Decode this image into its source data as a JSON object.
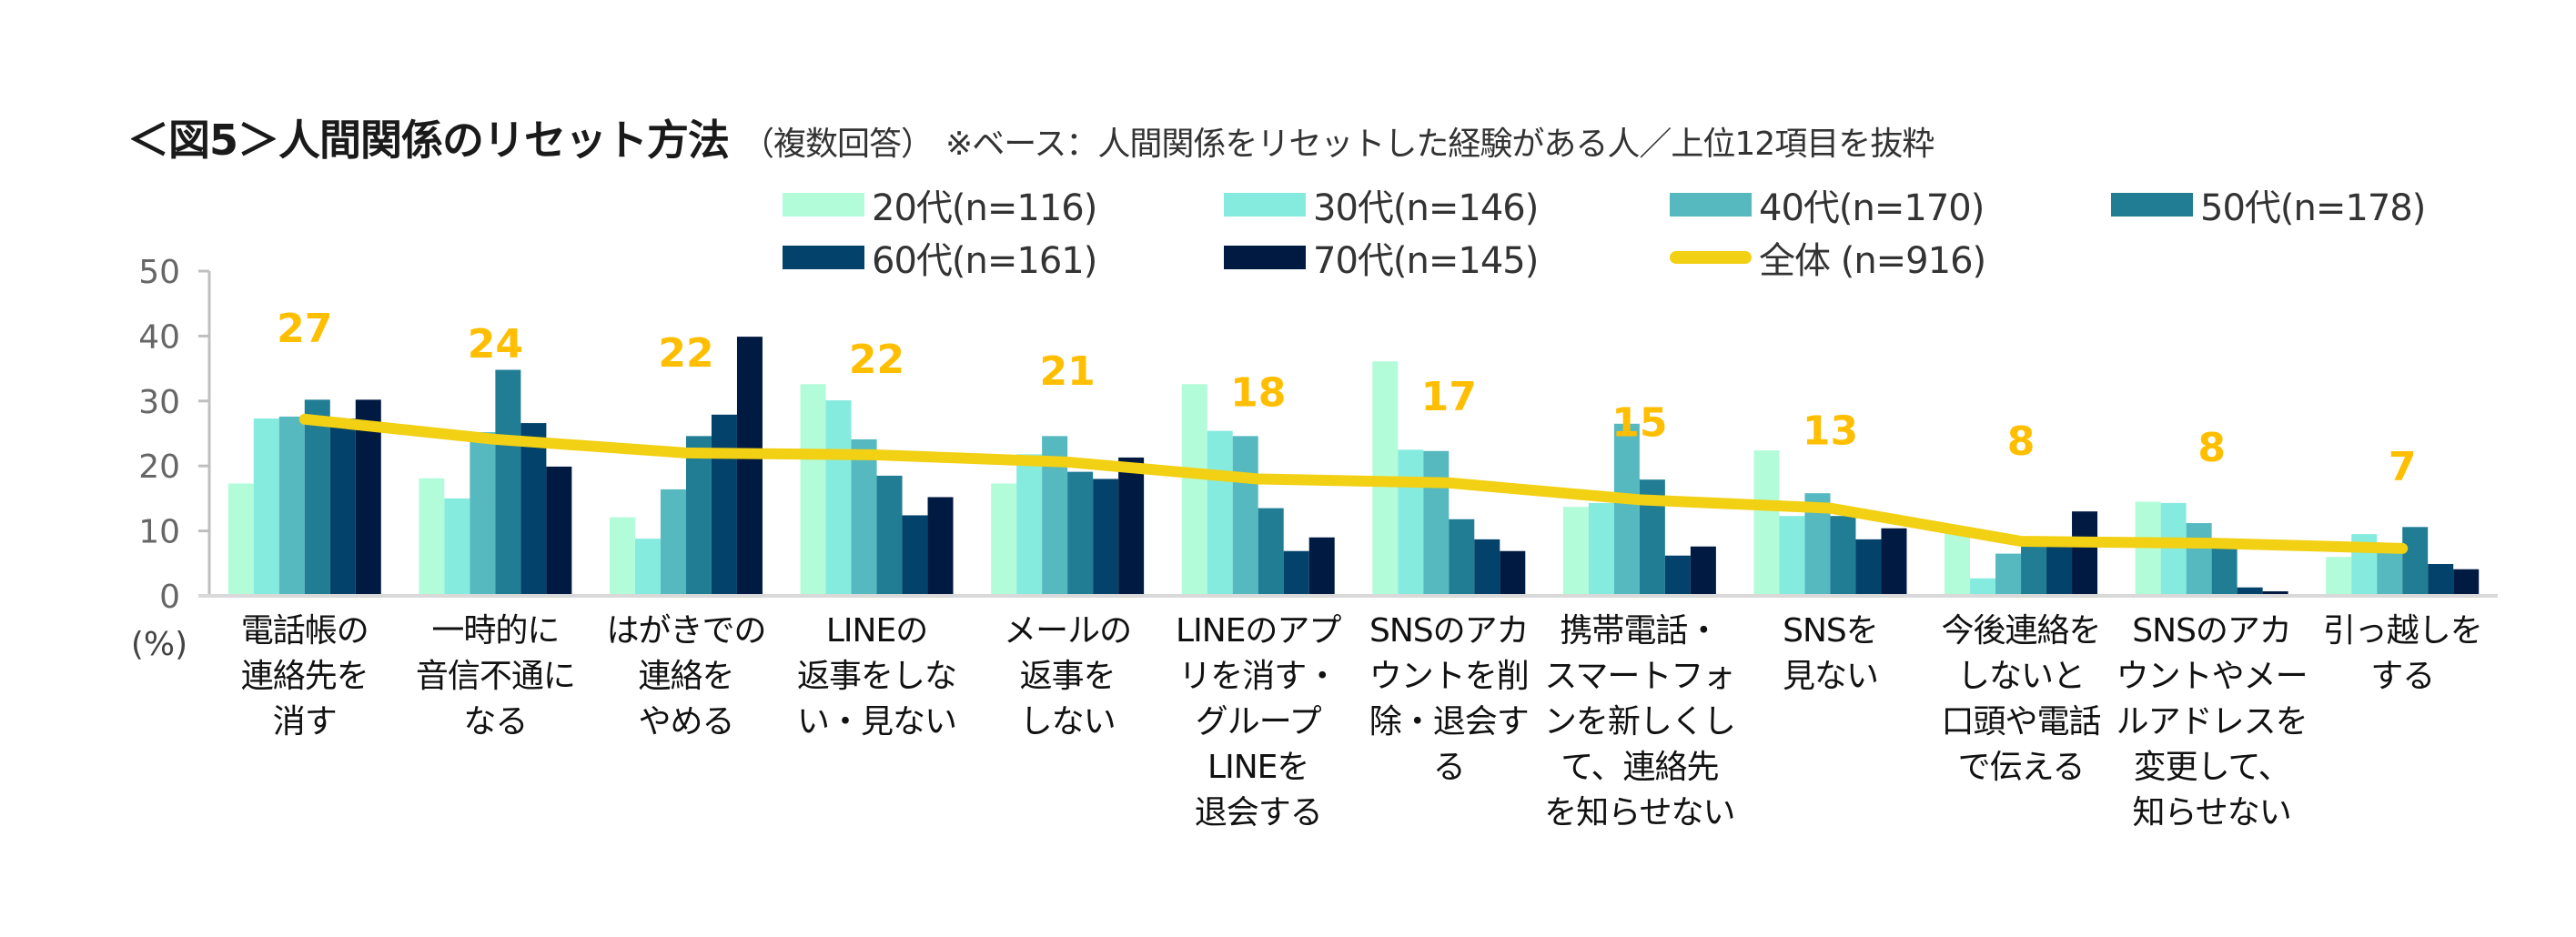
{
  "header": {
    "title": "＜図5＞人間関係のリセット方法",
    "subtitle": "（複数回答）",
    "note": "※ベース：人間関係をリセットした経験がある人／上位12項目を抜粋"
  },
  "chart_data": {
    "type": "bar",
    "title": "＜図5＞人間関係のリセット方法",
    "subtitle": "（複数回答） ※ベース：人間関係をリセットした経験がある人／上位12項目を抜粋",
    "xlabel": "",
    "ylabel": "(%)",
    "ylim": [
      0,
      50
    ],
    "yticks": [
      0,
      10,
      20,
      30,
      40,
      50
    ],
    "grid": false,
    "legend_position": "top",
    "categories": [
      "電話帳の連絡先を消す",
      "一時的に音信不通になる",
      "はがきでの連絡をやめる",
      "LINEの返事をしない・見ない",
      "メールの返事をしない",
      "LINEのアプリを消す・グループLINEを退会する",
      "SNSのアカウントを削除・退会する",
      "携帯電話・スマートフォンを新しくして、連絡先を知らせない",
      "SNSを見ない",
      "今後連絡をしないと口頭や電話で伝える",
      "SNSのアカウントやメールアドレスを変更して、知らせない",
      "引っ越しをする"
    ],
    "category_lines": [
      [
        "電話帳の",
        "連絡先を",
        "消す"
      ],
      [
        "一時的に",
        "音信不通に",
        "なる"
      ],
      [
        "はがきでの",
        "連絡を",
        "やめる"
      ],
      [
        "LINEの",
        "返事をしな",
        "い・見ない"
      ],
      [
        "メールの",
        "返事を",
        "しない"
      ],
      [
        "LINEのアプ",
        "リを消す・",
        "グループ",
        "LINEを",
        "退会する"
      ],
      [
        "SNSのアカ",
        "ウントを削",
        "除・退会す",
        "る"
      ],
      [
        "携帯電話・",
        "スマートフォ",
        "ンを新しくし",
        "て、連絡先",
        "を知らせない"
      ],
      [
        "SNSを",
        "見ない"
      ],
      [
        "今後連絡を",
        "しないと",
        "口頭や電話",
        "で伝える"
      ],
      [
        "SNSのアカ",
        "ウントやメー",
        "ルアドレスを",
        "変更して、",
        "知らせない"
      ],
      [
        "引っ越しを",
        "する"
      ]
    ],
    "series": [
      {
        "name": "20代(n=116)",
        "color": "#B3FCDA",
        "values": [
          17.3,
          18.1,
          12.1,
          32.6,
          17.3,
          32.6,
          36.1,
          13.7,
          22.4,
          9.7,
          14.5,
          6.0
        ]
      },
      {
        "name": "30代(n=146)",
        "color": "#86EBDF",
        "values": [
          27.3,
          15.0,
          8.8,
          30.1,
          21.8,
          25.4,
          22.5,
          14.3,
          12.3,
          2.7,
          14.3,
          9.5
        ]
      },
      {
        "name": "40代(n=170)",
        "color": "#55B9BF",
        "values": [
          27.6,
          25.2,
          16.4,
          24.1,
          24.6,
          24.6,
          22.3,
          26.5,
          15.8,
          6.5,
          11.2,
          7.3
        ]
      },
      {
        "name": "50代(n=178)",
        "color": "#217D94",
        "values": [
          30.2,
          34.8,
          24.6,
          18.5,
          19.1,
          13.5,
          11.8,
          17.9,
          12.3,
          8.6,
          7.3,
          10.6
        ]
      },
      {
        "name": "60代(n=161)",
        "color": "#03426A",
        "values": [
          27.3,
          26.6,
          27.9,
          12.4,
          18.0,
          6.9,
          8.7,
          6.2,
          8.7,
          8.6,
          1.3,
          4.9
        ]
      },
      {
        "name": "70代(n=145)",
        "color": "#011A42",
        "values": [
          30.2,
          19.9,
          39.9,
          15.2,
          21.3,
          9.0,
          6.9,
          7.6,
          10.4,
          13.0,
          0.7,
          4.1
        ]
      }
    ],
    "line_series": {
      "name": "全体 (n=916)",
      "color": "#F2D014",
      "values": [
        27.2,
        24.1,
        22.0,
        21.7,
        20.6,
        18.0,
        17.4,
        14.8,
        13.5,
        8.4,
        8.1,
        7.3
      ],
      "data_labels": [
        "27",
        "24",
        "22",
        "22",
        "21",
        "18",
        "17",
        "15",
        "13",
        "8",
        "8",
        "7"
      ],
      "label_color": "#FFBE00"
    }
  }
}
